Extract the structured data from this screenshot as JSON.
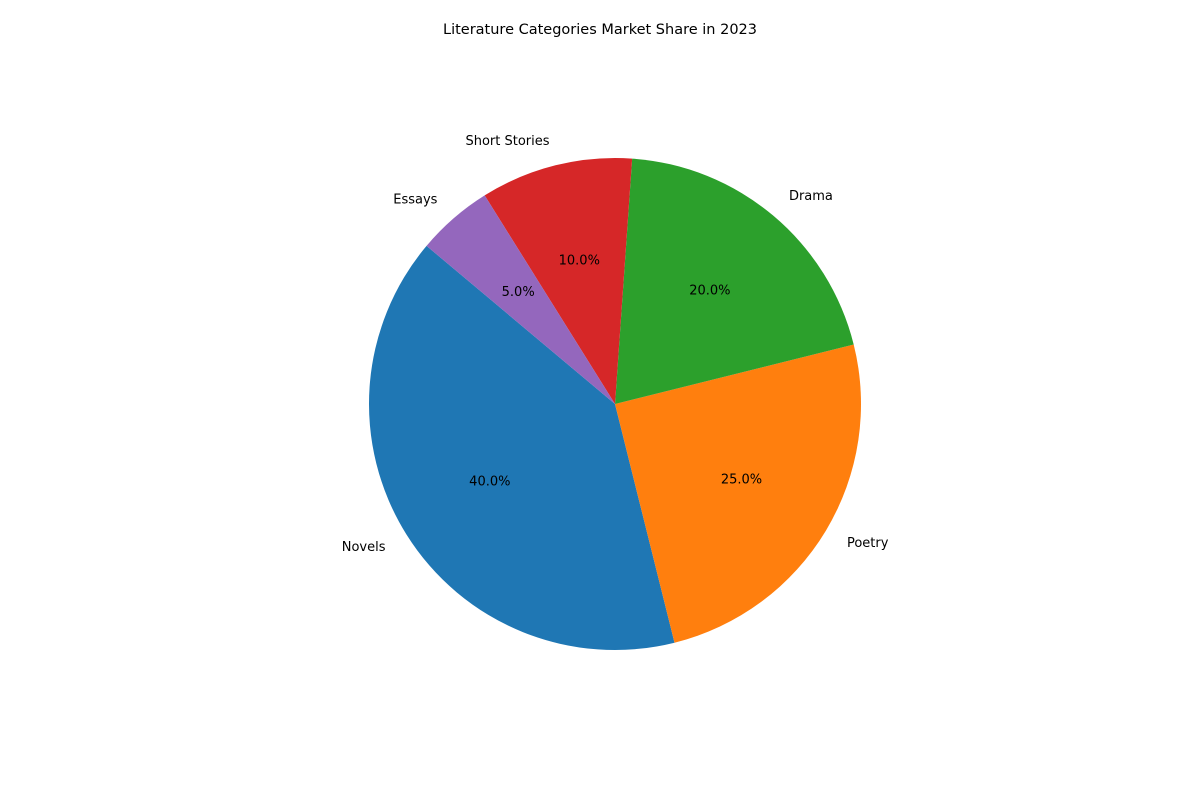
{
  "chart_data": {
    "type": "pie",
    "title": "Literature Categories Market Share in 2023",
    "categories": [
      "Novels",
      "Poetry",
      "Drama",
      "Short Stories",
      "Essays"
    ],
    "values": [
      40,
      25,
      20,
      10,
      5
    ],
    "value_labels": [
      "40.0%",
      "25.0%",
      "20.0%",
      "10.0%",
      "5.0%"
    ],
    "colors": [
      "#1f77b4",
      "#ff7f0e",
      "#2ca02c",
      "#d62728",
      "#9467bd"
    ],
    "start_angle_deg": 140,
    "direction": "counterclockwise",
    "legend": "none"
  }
}
